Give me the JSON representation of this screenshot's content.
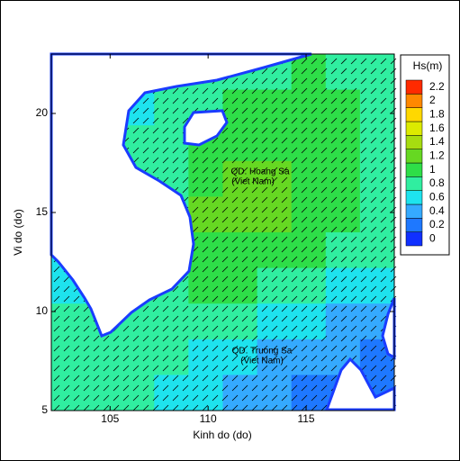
{
  "chart_data": {
    "type": "heatmap",
    "xlabel": "Kinh do (do)",
    "ylabel": "Vi do (do)",
    "xlim": [
      102,
      119.5
    ],
    "ylim": [
      5,
      23
    ],
    "xticks": [
      105,
      110,
      115
    ],
    "yticks": [
      5,
      10,
      15,
      20
    ],
    "colorbar_title": "Hs(m)",
    "levels": [
      0,
      0.2,
      0.4,
      0.6,
      0.8,
      1,
      1.2,
      1.4,
      1.6,
      1.8,
      2,
      2.2
    ],
    "colors": [
      "#1030ff",
      "#1e78ff",
      "#35aaff",
      "#1ee3ee",
      "#30eea0",
      "#2ede48",
      "#66d822",
      "#a6dc10",
      "#dcea00",
      "#ffd800",
      "#ff8800",
      "#ff2a00"
    ],
    "annotations": [
      "QD. Hoang Sa",
      "(Viet Nam)",
      "QD. Truong Sa",
      "(Viet Nam)"
    ],
    "field": [
      [
        0.6,
        0.6,
        0.6,
        0.8,
        0.8,
        0.9,
        0.9,
        1.0,
        0.9,
        0.9
      ],
      [
        0.6,
        0.6,
        0.6,
        0.8,
        0.9,
        1.0,
        1.0,
        1.0,
        1.0,
        0.9
      ],
      [
        0.6,
        0.6,
        0.8,
        0.9,
        1.0,
        1.1,
        1.1,
        1.1,
        1.0,
        0.9
      ],
      [
        0.6,
        0.6,
        0.8,
        0.9,
        1.1,
        1.2,
        1.2,
        1.1,
        1.0,
        0.9
      ],
      [
        0.6,
        0.6,
        0.8,
        0.9,
        1.2,
        1.2,
        1.2,
        1.1,
        1.0,
        0.9
      ],
      [
        0.6,
        0.6,
        0.8,
        0.9,
        1.1,
        1.1,
        1.1,
        1.0,
        0.9,
        0.8
      ],
      [
        0.6,
        0.6,
        0.8,
        0.9,
        1.1,
        1.0,
        0.9,
        0.8,
        0.7,
        0.6
      ],
      [
        0.8,
        0.8,
        0.8,
        0.9,
        0.9,
        0.8,
        0.7,
        0.6,
        0.5,
        0.4
      ],
      [
        0.8,
        0.9,
        0.9,
        0.8,
        0.7,
        0.6,
        0.5,
        0.4,
        0.4,
        0.3
      ],
      [
        0.8,
        0.9,
        0.8,
        0.7,
        0.6,
        0.5,
        0.4,
        0.3,
        0.3,
        0.3
      ]
    ]
  }
}
